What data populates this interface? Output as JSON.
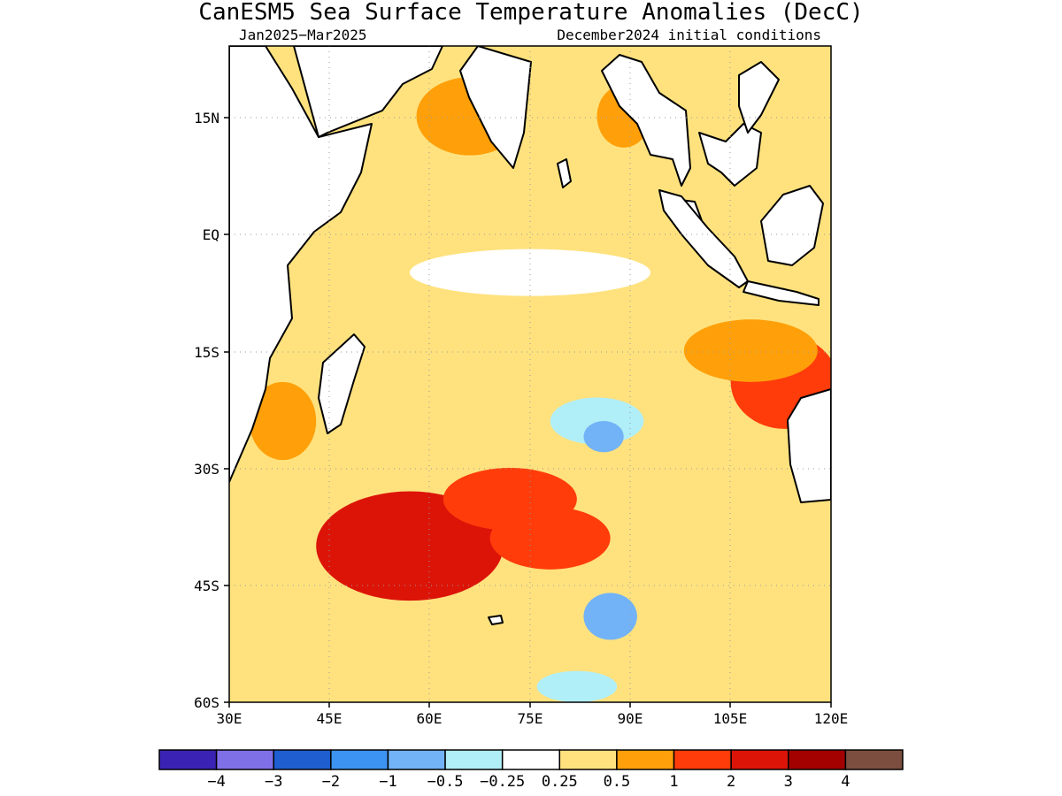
{
  "chart_data": {
    "type": "heatmap",
    "title": "CanESM5 Sea Surface Temperature Anomalies (DecC)",
    "subtitle_left": "Jan2025−Mar2025",
    "subtitle_right": "December2024 initial conditions",
    "x_ticks": [
      "30E",
      "45E",
      "60E",
      "75E",
      "90E",
      "105E",
      "120E"
    ],
    "y_ticks": [
      "15N",
      "EQ",
      "15S",
      "30S",
      "45S",
      "60S"
    ],
    "x_tick_values": [
      30,
      45,
      60,
      75,
      90,
      105,
      120
    ],
    "y_tick_values": [
      15,
      0,
      -15,
      -30,
      -45,
      -60
    ],
    "xlim": [
      30,
      120
    ],
    "ylim": [
      -60,
      24
    ],
    "grid": true,
    "colorbar": {
      "labels": [
        "−4",
        "−3",
        "−2",
        "−1",
        "−0.5",
        "−0.25",
        "0.25",
        "0.5",
        "1",
        "2",
        "3",
        "4"
      ],
      "boundaries": [
        -4,
        -3,
        -2,
        -1,
        -0.5,
        -0.25,
        0.25,
        0.5,
        1,
        2,
        3,
        4
      ],
      "colors": [
        "#3a23b4",
        "#8070e8",
        "#1e5ed0",
        "#3d93f2",
        "#72b2f7",
        "#b0eef8",
        "#ffffff",
        "#ffe27e",
        "#ffa00a",
        "#ff3c0a",
        "#dc1408",
        "#a30000",
        "#7c4e40"
      ]
    },
    "anomaly_regions": [
      {
        "name": "sw-indian-warm",
        "lon": 57,
        "lat": -40,
        "rx": 14,
        "ry": 7,
        "value": 2.0
      },
      {
        "name": "central-south-warm",
        "lon": 72,
        "lat": -34,
        "rx": 10,
        "ry": 4,
        "value": 1.6
      },
      {
        "name": "core-warm",
        "lon": 54,
        "lat": -44,
        "rx": 4,
        "ry": 2,
        "value": 2.4
      },
      {
        "name": "nw-australia-warm",
        "lon": 113,
        "lat": -19,
        "rx": 8,
        "ry": 6,
        "value": 1.8
      },
      {
        "name": "timor-sea-warm",
        "lon": 108,
        "lat": -15,
        "rx": 10,
        "ry": 4,
        "value": 0.9
      },
      {
        "name": "arabian-sea-warm",
        "lon": 66,
        "lat": 15,
        "rx": 8,
        "ry": 5,
        "value": 0.85
      },
      {
        "name": "bay-of-bengal-warm",
        "lon": 89,
        "lat": 15,
        "rx": 4,
        "ry": 4,
        "value": 0.75
      },
      {
        "name": "madagascar-warm",
        "lon": 38,
        "lat": -24,
        "rx": 5,
        "ry": 5,
        "value": 0.8
      },
      {
        "name": "southeast-warm",
        "lon": 78,
        "lat": -39,
        "rx": 9,
        "ry": 4,
        "value": 1.0
      },
      {
        "name": "equatorial-neutral",
        "lon": 75,
        "lat": -5,
        "rx": 18,
        "ry": 3,
        "value": 0.0
      },
      {
        "name": "central-cool",
        "lon": 85,
        "lat": -24,
        "rx": 7,
        "ry": 3,
        "value": -0.4
      },
      {
        "name": "central-cool-core",
        "lon": 86,
        "lat": -26,
        "rx": 3,
        "ry": 2,
        "value": -0.7
      },
      {
        "name": "south-cool",
        "lon": 87,
        "lat": -49,
        "rx": 4,
        "ry": 3,
        "value": -0.6
      },
      {
        "name": "south-cool-core",
        "lon": 87,
        "lat": -50,
        "rx": 2,
        "ry": 1.5,
        "value": -1.0
      },
      {
        "name": "far-south-cool",
        "lon": 82,
        "lat": -58,
        "rx": 6,
        "ry": 2,
        "value": -0.3
      }
    ]
  }
}
